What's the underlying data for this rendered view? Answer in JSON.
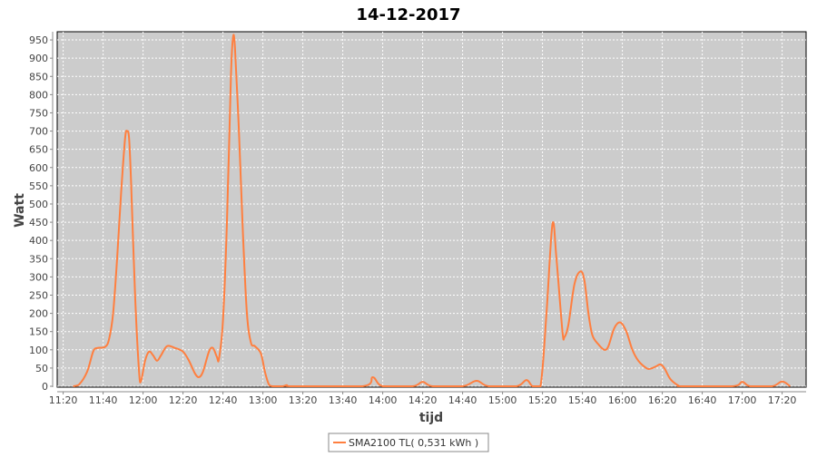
{
  "chart_data": {
    "type": "line",
    "title": "14-12-2017",
    "xlabel": "tijd",
    "ylabel": "Watt",
    "ylim": [
      0,
      975
    ],
    "xlim": [
      "11:17",
      "17:32"
    ],
    "grid": true,
    "legend_placement": "bottom",
    "colors": {
      "series": "#ff7f3f",
      "plot_bg": "#cccccc",
      "grid": "#ffffff"
    },
    "yticks": [
      0,
      50,
      100,
      150,
      200,
      250,
      300,
      350,
      400,
      450,
      500,
      550,
      600,
      650,
      700,
      750,
      800,
      850,
      900,
      950
    ],
    "xticks": [
      "11:20",
      "11:40",
      "12:00",
      "12:20",
      "12:40",
      "13:00",
      "13:20",
      "13:40",
      "14:00",
      "14:20",
      "14:40",
      "15:00",
      "15:20",
      "15:40",
      "16:00",
      "16:20",
      "16:40",
      "17:00",
      "17:20"
    ],
    "series": [
      {
        "name": "SMA2100 TL( 0,531 kWh )",
        "points": [
          [
            "11:25",
            0
          ],
          [
            "11:28",
            5
          ],
          [
            "11:32",
            40
          ],
          [
            "11:35",
            95
          ],
          [
            "11:37",
            105
          ],
          [
            "11:41",
            108
          ],
          [
            "11:43",
            130
          ],
          [
            "11:45",
            200
          ],
          [
            "11:47",
            350
          ],
          [
            "11:49",
            530
          ],
          [
            "11:51",
            680
          ],
          [
            "11:52",
            700
          ],
          [
            "11:53",
            680
          ],
          [
            "11:54",
            560
          ],
          [
            "11:56",
            250
          ],
          [
            "11:58",
            40
          ],
          [
            "11:59",
            15
          ],
          [
            "12:01",
            70
          ],
          [
            "12:03",
            95
          ],
          [
            "12:05",
            85
          ],
          [
            "12:07",
            70
          ],
          [
            "12:09",
            85
          ],
          [
            "12:12",
            110
          ],
          [
            "12:16",
            105
          ],
          [
            "12:20",
            95
          ],
          [
            "12:23",
            70
          ],
          [
            "12:26",
            35
          ],
          [
            "12:28",
            25
          ],
          [
            "12:30",
            40
          ],
          [
            "12:33",
            95
          ],
          [
            "12:35",
            105
          ],
          [
            "12:37",
            80
          ],
          [
            "12:38",
            75
          ],
          [
            "12:40",
            180
          ],
          [
            "12:42",
            450
          ],
          [
            "12:44",
            850
          ],
          [
            "12:45",
            955
          ],
          [
            "12:46",
            930
          ],
          [
            "12:48",
            700
          ],
          [
            "12:50",
            420
          ],
          [
            "12:52",
            200
          ],
          [
            "12:54",
            120
          ],
          [
            "12:56",
            110
          ],
          [
            "12:59",
            90
          ],
          [
            "13:01",
            40
          ],
          [
            "13:03",
            5
          ],
          [
            "13:05",
            0
          ],
          [
            "13:10",
            0
          ],
          [
            "13:12",
            3
          ],
          [
            "13:15",
            0
          ],
          [
            "13:50",
            0
          ],
          [
            "13:55",
            25
          ],
          [
            "14:00",
            0
          ],
          [
            "14:15",
            0
          ],
          [
            "14:20",
            12
          ],
          [
            "14:25",
            0
          ],
          [
            "14:40",
            0
          ],
          [
            "14:47",
            15
          ],
          [
            "14:53",
            0
          ],
          [
            "15:07",
            0
          ],
          [
            "15:12",
            17
          ],
          [
            "15:15",
            0
          ],
          [
            "15:19",
            0
          ],
          [
            "15:22",
            200
          ],
          [
            "15:25",
            445
          ],
          [
            "15:27",
            350
          ],
          [
            "15:30",
            150
          ],
          [
            "15:31",
            135
          ],
          [
            "15:33",
            170
          ],
          [
            "15:36",
            280
          ],
          [
            "15:39",
            315
          ],
          [
            "15:41",
            290
          ],
          [
            "15:43",
            200
          ],
          [
            "15:45",
            140
          ],
          [
            "15:48",
            115
          ],
          [
            "15:51",
            100
          ],
          [
            "15:53",
            110
          ],
          [
            "15:56",
            160
          ],
          [
            "15:59",
            175
          ],
          [
            "16:02",
            150
          ],
          [
            "16:05",
            100
          ],
          [
            "16:08",
            70
          ],
          [
            "16:12",
            50
          ],
          [
            "16:14",
            48
          ],
          [
            "16:17",
            55
          ],
          [
            "16:19",
            60
          ],
          [
            "16:21",
            50
          ],
          [
            "16:24",
            20
          ],
          [
            "16:28",
            2
          ],
          [
            "16:30",
            0
          ],
          [
            "16:55",
            0
          ],
          [
            "17:00",
            12
          ],
          [
            "17:04",
            0
          ],
          [
            "17:15",
            0
          ],
          [
            "17:20",
            13
          ],
          [
            "17:24",
            0
          ]
        ]
      }
    ]
  }
}
